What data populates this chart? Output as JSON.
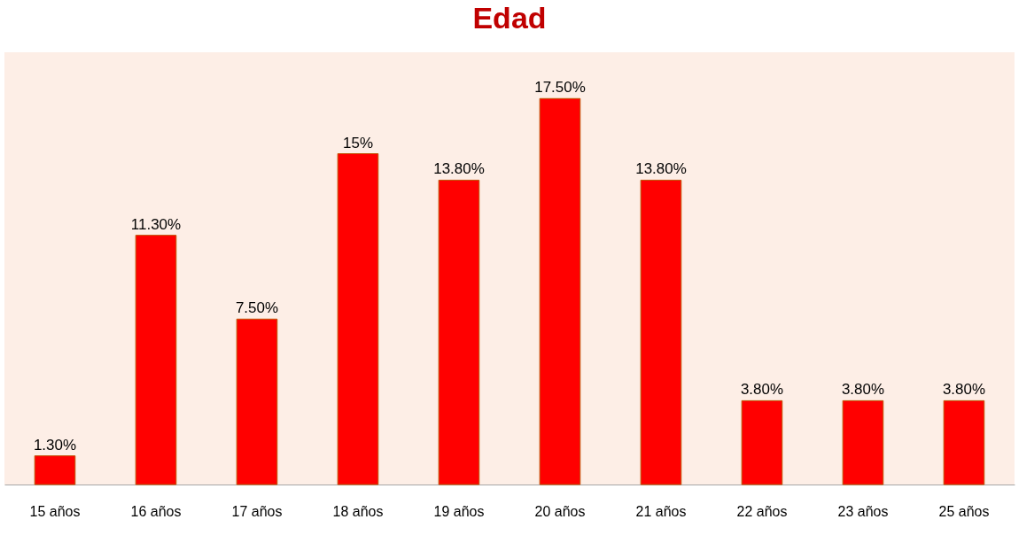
{
  "chart_data": {
    "type": "bar",
    "title": "Edad",
    "categories": [
      "15 años",
      "16 años",
      "17 años",
      "18 años",
      "19 años",
      "20 años",
      "21 años",
      "22 años",
      "23 años",
      "25 años"
    ],
    "values": [
      1.3,
      11.3,
      7.5,
      15,
      13.8,
      17.5,
      13.8,
      3.8,
      3.8,
      3.8
    ],
    "value_labels": [
      "1.30%",
      "11.30%",
      "7.50%",
      "15%",
      "13.80%",
      "17.50%",
      "13.80%",
      "3.80%",
      "3.80%",
      "3.80%"
    ],
    "color": "#ff0000",
    "tick_labels": "x"
  }
}
